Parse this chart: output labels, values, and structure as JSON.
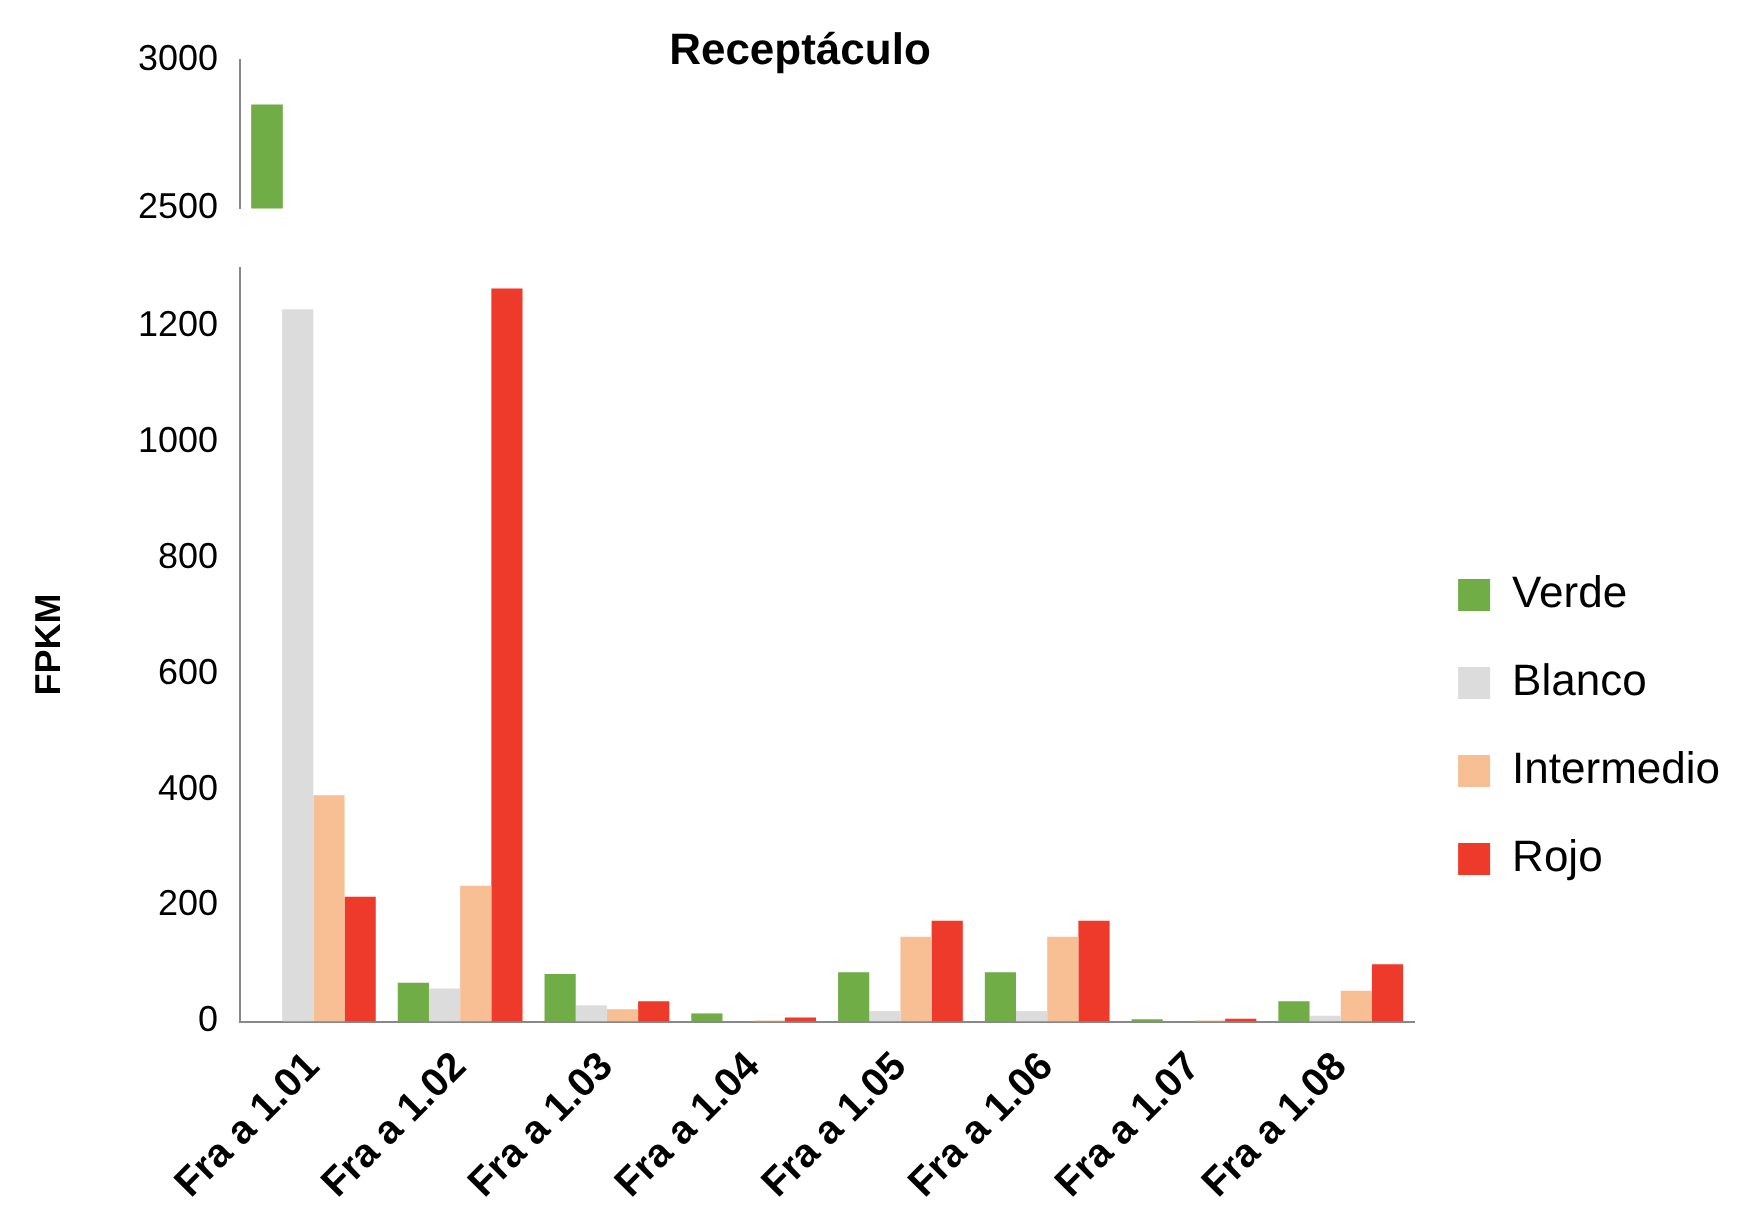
{
  "chart_data": [
    {
      "type": "bar",
      "categories": [
        null
      ],
      "series": [
        {
          "color": "#70ad47",
          "values": [
            2850
          ]
        }
      ],
      "ylim": [
        2500,
        3000
      ],
      "yticks": [
        2500,
        3000
      ],
      "tick_labels": "y",
      "grid": false,
      "legend": false
    },
    {
      "type": "bar",
      "title": "Receptáculo",
      "ylabel": "FPKM",
      "categories": [
        "Fra a 1.01",
        "Fra a 1.02",
        "Fra a 1.03",
        "Fra a 1.04",
        "Fra a 1.05",
        "Fra a 1.06",
        "Fra a 1.07",
        "Fra a 1.08"
      ],
      "series": [
        {
          "name": "Verde",
          "color": "#70ad47",
          "values": [
            null,
            67,
            82,
            14,
            85,
            85,
            4,
            35
          ]
        },
        {
          "name": "Blanco",
          "color": "#dcdcdc",
          "values": [
            1228,
            57,
            28,
            null,
            18,
            18,
            null,
            10
          ]
        },
        {
          "name": "Intermedio",
          "color": "#f8bf94",
          "values": [
            390,
            234,
            21,
            2,
            146,
            146,
            2,
            53
          ]
        },
        {
          "name": "Rojo",
          "color": "#ee3a2a",
          "values": [
            215,
            1264,
            35,
            7,
            174,
            174,
            5,
            99
          ]
        }
      ],
      "ylim": [
        0,
        1300
      ],
      "yticks": [
        0,
        200,
        400,
        600,
        800,
        1000,
        1200
      ],
      "grid": false,
      "legend": "right"
    }
  ]
}
